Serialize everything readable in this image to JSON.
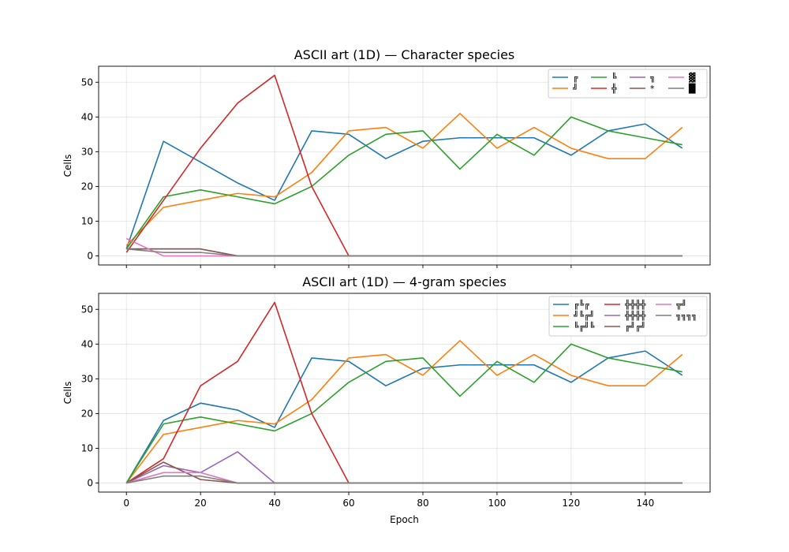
{
  "colors": [
    "#1f77b4",
    "#ff7f0e",
    "#2ca02c",
    "#d62728",
    "#9467bd",
    "#8c564b",
    "#e377c2",
    "#7f7f7f"
  ],
  "chart_data": [
    {
      "type": "line",
      "title": "ASCII art (1D) — Character species",
      "xlabel": "",
      "ylabel": "Cells",
      "xlim": [
        -7.5,
        157.5
      ],
      "ylim": [
        -2.6,
        54.6
      ],
      "xticks": [
        0,
        20,
        40,
        60,
        80,
        100,
        120,
        140
      ],
      "xticklabels_visible": false,
      "yticks": [
        0,
        10,
        20,
        30,
        40,
        50
      ],
      "grid": true,
      "legend": {
        "placement": "top-right",
        "ncol": 4
      },
      "x": [
        0,
        10,
        20,
        30,
        40,
        50,
        60,
        70,
        80,
        90,
        100,
        110,
        120,
        130,
        140,
        150
      ],
      "series": [
        {
          "name": "╔",
          "values": [
            2,
            33,
            27,
            21,
            16,
            36,
            35,
            28,
            33,
            34,
            34,
            34,
            29,
            36,
            38,
            31
          ]
        },
        {
          "name": "╝",
          "values": [
            3,
            14,
            16,
            18,
            17,
            24,
            36,
            37,
            31,
            41,
            31,
            37,
            31,
            28,
            28,
            37
          ]
        },
        {
          "name": "╚",
          "values": [
            2,
            17,
            19,
            17,
            15,
            20,
            29,
            35,
            36,
            25,
            35,
            29,
            40,
            36,
            34,
            32
          ]
        },
        {
          "name": "╬",
          "values": [
            1,
            16,
            31,
            44,
            52,
            20,
            0,
            0,
            0,
            0,
            0,
            0,
            0,
            0,
            0,
            0
          ]
        },
        {
          "name": "╗",
          "values": [
            2,
            2,
            2,
            0,
            0,
            0,
            0,
            0,
            0,
            0,
            0,
            0,
            0,
            0,
            0,
            0
          ]
        },
        {
          "name": "*",
          "values": [
            2,
            2,
            2,
            0,
            0,
            0,
            0,
            0,
            0,
            0,
            0,
            0,
            0,
            0,
            0,
            0
          ]
        },
        {
          "name": "▓",
          "values": [
            5,
            0,
            0,
            0,
            0,
            0,
            0,
            0,
            0,
            0,
            0,
            0,
            0,
            0,
            0,
            0
          ]
        },
        {
          "name": "█",
          "values": [
            2,
            1,
            1,
            0,
            0,
            0,
            0,
            0,
            0,
            0,
            0,
            0,
            0,
            0,
            0,
            0
          ]
        }
      ]
    },
    {
      "type": "line",
      "title": "ASCII art (1D) — 4-gram species",
      "xlabel": "Epoch",
      "ylabel": "Cells",
      "xlim": [
        -7.5,
        157.5
      ],
      "ylim": [
        -2.6,
        54.6
      ],
      "xticks": [
        0,
        20,
        40,
        60,
        80,
        100,
        120,
        140
      ],
      "xticklabels_visible": true,
      "yticks": [
        0,
        10,
        20,
        30,
        40,
        50
      ],
      "grid": true,
      "legend": {
        "placement": "top-right",
        "ncol": 3
      },
      "x": [
        0,
        10,
        20,
        30,
        40,
        50,
        60,
        70,
        80,
        90,
        100,
        110,
        120,
        130,
        140,
        150
      ],
      "series": [
        {
          "name": "╔╚╔",
          "values": [
            0,
            18,
            23,
            21,
            16,
            36,
            35,
            28,
            33,
            34,
            34,
            34,
            29,
            36,
            38,
            31
          ]
        },
        {
          "name": "╝╚╔╝",
          "values": [
            0,
            14,
            16,
            18,
            17,
            24,
            36,
            37,
            31,
            41,
            31,
            37,
            31,
            28,
            28,
            37
          ]
        },
        {
          "name": "╚╔╝╚",
          "values": [
            0,
            17,
            19,
            17,
            15,
            20,
            29,
            35,
            36,
            25,
            35,
            29,
            40,
            36,
            34,
            32
          ]
        },
        {
          "name": "╬╬╬╬",
          "values": [
            0,
            7,
            28,
            35,
            52,
            20,
            0,
            0,
            0,
            0,
            0,
            0,
            0,
            0,
            0,
            0
          ]
        },
        {
          "name": "╬╬╬╬",
          "values": [
            0,
            5,
            3,
            9,
            0,
            0,
            0,
            0,
            0,
            0,
            0,
            0,
            0,
            0,
            0,
            0
          ]
        },
        {
          "name": "╔╝╔╝",
          "values": [
            0,
            6,
            1,
            0,
            0,
            0,
            0,
            0,
            0,
            0,
            0,
            0,
            0,
            0,
            0,
            0
          ]
        },
        {
          "name": "╦╝",
          "values": [
            0,
            3,
            3,
            0,
            0,
            0,
            0,
            0,
            0,
            0,
            0,
            0,
            0,
            0,
            0,
            0
          ]
        },
        {
          "name": "╗╗╗╗",
          "values": [
            0,
            2,
            2,
            0,
            0,
            0,
            0,
            0,
            0,
            0,
            0,
            0,
            0,
            0,
            0,
            0
          ]
        }
      ]
    }
  ]
}
